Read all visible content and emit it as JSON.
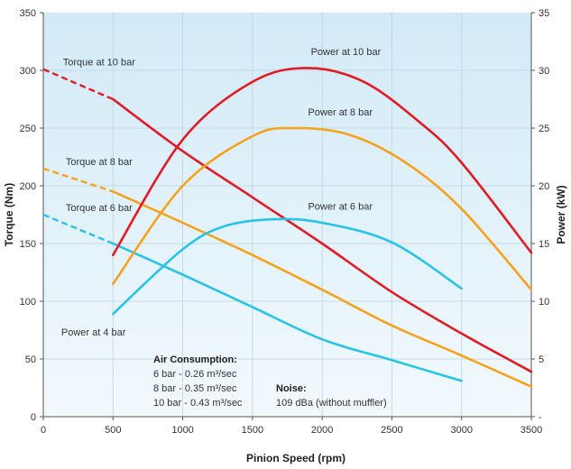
{
  "chart_data": {
    "type": "line",
    "title": "",
    "xlabel": "Pinion Speed (rpm)",
    "ylabel_left": "Torque (Nm)",
    "ylabel_right": "Power (kW)",
    "xlim": [
      0,
      3500
    ],
    "ylim_left": [
      0,
      350
    ],
    "ylim_right": [
      0,
      35
    ],
    "x_ticks": [
      "0",
      "500",
      "1000",
      "1500",
      "2000",
      "2500",
      "3000",
      "3500"
    ],
    "y_ticks_left": [
      "0",
      "50",
      "100",
      "150",
      "200",
      "250",
      "300",
      "350"
    ],
    "y_ticks_right": [
      "-",
      "5",
      "10",
      "15",
      "20",
      "25",
      "30",
      "35"
    ],
    "grid": true,
    "legend": "none",
    "colors": {
      "red": "#e31b23",
      "orange": "#f7a21b",
      "cyan": "#27c4ea"
    },
    "series": [
      {
        "name": "Torque at 10 bar",
        "axis": "left",
        "color": "red",
        "dashed": [
          [
            0,
            301
          ],
          [
            500,
            275
          ]
        ],
        "points": [
          [
            500,
            275
          ],
          [
            1000,
            230
          ],
          [
            1500,
            190
          ],
          [
            2000,
            150
          ],
          [
            2500,
            108
          ],
          [
            3000,
            72
          ],
          [
            3500,
            39
          ]
        ]
      },
      {
        "name": "Torque at 8 bar",
        "axis": "left",
        "color": "orange",
        "dashed": [
          [
            0,
            215
          ],
          [
            500,
            195
          ]
        ],
        "points": [
          [
            500,
            195
          ],
          [
            1000,
            168
          ],
          [
            1500,
            140
          ],
          [
            2000,
            110
          ],
          [
            2500,
            79
          ],
          [
            3000,
            53
          ],
          [
            3500,
            26
          ]
        ]
      },
      {
        "name": "Torque at 6 bar",
        "axis": "left",
        "color": "cyan",
        "dashed": [
          [
            0,
            175
          ],
          [
            500,
            150
          ]
        ],
        "points": [
          [
            500,
            150
          ],
          [
            1000,
            123
          ],
          [
            1500,
            95
          ],
          [
            2000,
            67
          ],
          [
            2500,
            49
          ],
          [
            3000,
            31
          ]
        ]
      },
      {
        "name": "Power at 10 bar",
        "axis": "right",
        "color": "red",
        "points": [
          [
            500,
            14
          ],
          [
            1000,
            24
          ],
          [
            1500,
            29
          ],
          [
            1900,
            30.2
          ],
          [
            2300,
            29
          ],
          [
            2700,
            25.5
          ],
          [
            3000,
            22
          ],
          [
            3500,
            14.2
          ]
        ]
      },
      {
        "name": "Power at 8 bar",
        "axis": "right",
        "color": "orange",
        "points": [
          [
            500,
            11.5
          ],
          [
            1000,
            20
          ],
          [
            1500,
            24.3
          ],
          [
            1800,
            25
          ],
          [
            2200,
            24.4
          ],
          [
            2600,
            22
          ],
          [
            3000,
            18
          ],
          [
            3500,
            11
          ]
        ]
      },
      {
        "name": "Power at 6 bar",
        "axis": "right",
        "color": "cyan",
        "points": [
          [
            500,
            8.9
          ],
          [
            1000,
            14.5
          ],
          [
            1300,
            16.5
          ],
          [
            1650,
            17.1
          ],
          [
            2000,
            16.8
          ],
          [
            2500,
            15.1
          ],
          [
            3000,
            11.1
          ]
        ]
      }
    ],
    "series_labels": [
      {
        "text": "Torque at 10 bar",
        "x": 400,
        "y": 301,
        "axis": "left"
      },
      {
        "text": "Torque at 8 bar",
        "x": 400,
        "y": 215,
        "axis": "left"
      },
      {
        "text": "Torque at 6 bar",
        "x": 400,
        "y": 175,
        "axis": "left"
      },
      {
        "text": "Power at 10 bar",
        "x": 2170,
        "y": 31,
        "axis": "right"
      },
      {
        "text": "Power at 8 bar",
        "x": 2130,
        "y": 25.8,
        "axis": "right"
      },
      {
        "text": "Power at 6 bar",
        "x": 2130,
        "y": 17.6,
        "axis": "right"
      },
      {
        "text": "Power at 4 bar",
        "x": 360,
        "y": 6.7,
        "axis": "right"
      }
    ],
    "annotations": {
      "air_title": "Air Consumption:",
      "air_lines": [
        "6   bar - 0.26 m³/sec",
        "8   bar - 0.35 m³/sec",
        "10 bar - 0.43 m³/sec"
      ],
      "noise_title": "Noise:",
      "noise_line": "109 dBa (without muffler)"
    }
  }
}
